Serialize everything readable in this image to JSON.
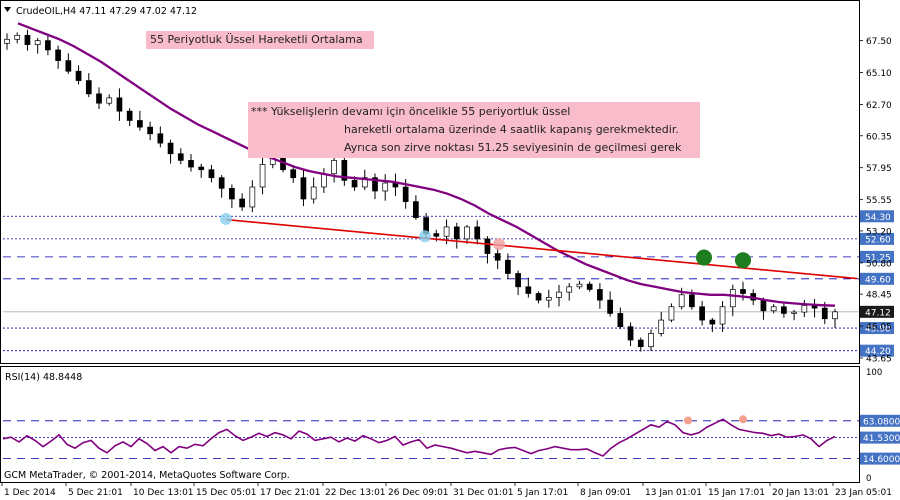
{
  "window": {
    "header": "CrudeOIL,H4 47.11 47.29 47.02 47.12",
    "copyright": "GCM MetaTrader, © 2001-2014, MetaQuotes Software Corp."
  },
  "annotations": {
    "ma_label": "55 Periyotluk Üssel Hareketli Ortalama",
    "note_line1": "*** Yükselişlerin devamı için öncelikle 55 periyortluk üssel",
    "note_line2": "hareketli ortalama üzerinde 4 saatlik kapanış gerekmektedir.",
    "note_line3": "Ayrıca son zirve noktası 51.25 seviyesinin de geçilmesi gerek"
  },
  "colors": {
    "price_line": "#000000",
    "ema": "#800080",
    "trendline": "#e00000",
    "level_line": "#0000aa",
    "rsi_line": "#800080",
    "label_box": "#4472c4",
    "current_box": "#1a1a1a",
    "touch_marker": "#87ceeb",
    "resistance_marker": "#1e7d1e",
    "rsi_peak_marker": "#f4a08a",
    "annotation_bg": "#f8bccb"
  },
  "chart_data": [
    {
      "type": "line",
      "title": "CrudeOIL,H4",
      "ohlc_last": {
        "open": 47.11,
        "high": 47.29,
        "low": 47.02,
        "close": 47.12
      },
      "ylim": [
        43.65,
        68.9
      ],
      "yticks": [
        67.5,
        65.1,
        62.7,
        60.35,
        57.95,
        55.55,
        53.2,
        50.8,
        48.45,
        46.05,
        43.65
      ],
      "xticks": [
        "1 Dec 2014",
        "5 Dec 21:01",
        "10 Dec 13:01",
        "15 Dec 05:01",
        "17 Dec 21:01",
        "22 Dec 13:01",
        "26 Dec 09:01",
        "31 Dec 01:01",
        "5 Jan 17:01",
        "8 Jan 09:01",
        "13 Jan 01:01",
        "15 Jan 17:01",
        "20 Jan 13:01",
        "23 Jan 05:01"
      ],
      "price_levels": [
        {
          "label": "54.30",
          "value": 54.3,
          "style": "dotted"
        },
        {
          "label": "52.60",
          "value": 52.6,
          "style": "dotted"
        },
        {
          "label": "51.25",
          "value": 51.25,
          "style": "dashed"
        },
        {
          "label": "49.60",
          "value": 49.6,
          "style": "dashed"
        },
        {
          "label": "47.12",
          "value": 47.12,
          "style": "current"
        },
        {
          "label": "45.90",
          "value": 45.9,
          "style": "dotted"
        },
        {
          "label": "44.20",
          "value": 44.2,
          "style": "dotted"
        }
      ],
      "series": [
        {
          "key": "close",
          "values": [
            67.6,
            67.9,
            67.2,
            67.5,
            66.8,
            66.0,
            65.2,
            64.5,
            63.5,
            62.8,
            63.2,
            62.2,
            61.5,
            61.0,
            60.5,
            59.8,
            59.0,
            58.5,
            58.0,
            57.8,
            57.2,
            56.4,
            55.6,
            55.0,
            56.5,
            58.2,
            58.8,
            57.8,
            57.2,
            55.6,
            56.5,
            57.5,
            58.5,
            57.0,
            56.5,
            57.2,
            56.2,
            56.8,
            56.5,
            55.4,
            54.2,
            53.0,
            52.8,
            53.5,
            52.6,
            53.5,
            52.6,
            51.5,
            51.0,
            50.0,
            49.0,
            48.5,
            48.0,
            48.2,
            48.6,
            49.0,
            49.2,
            48.8,
            48.0,
            47.0,
            46.0,
            45.0,
            44.5,
            45.5,
            46.5,
            47.5,
            48.4,
            47.5,
            46.5,
            46.2,
            47.5,
            48.8,
            48.5,
            48.0,
            47.2,
            47.5,
            47.0,
            47.1,
            47.6,
            47.4,
            46.6,
            47.12
          ]
        },
        {
          "key": "ema55",
          "values": [
            68.8,
            68.4,
            68.0,
            67.6,
            67.1,
            66.5,
            65.9,
            65.2,
            64.5,
            63.8,
            63.1,
            62.4,
            61.8,
            61.2,
            60.7,
            60.2,
            59.7,
            59.2,
            58.8,
            58.4,
            58.0,
            57.7,
            57.5,
            57.3,
            57.2,
            57.1,
            57.0,
            56.9,
            56.7,
            56.5,
            56.3,
            56.0,
            55.6,
            55.1,
            54.5,
            54.0,
            53.5,
            52.9,
            52.3,
            51.7,
            51.2,
            50.7,
            50.3,
            49.9,
            49.5,
            49.2,
            49.0,
            48.8,
            48.6,
            48.5,
            48.4,
            48.4,
            48.3,
            48.2,
            48.0,
            47.85,
            47.75,
            47.68,
            47.62,
            47.58
          ]
        },
        {
          "key": "trendline",
          "values": [
            54.05,
            49.62
          ]
        }
      ],
      "markers": [
        {
          "name": "touch-1",
          "y": 54.1
        },
        {
          "name": "touch-2",
          "y": 52.8
        },
        {
          "name": "touch-3",
          "y": 52.2
        },
        {
          "name": "resistance-1",
          "y": 51.2
        },
        {
          "name": "resistance-2",
          "y": 51.0
        }
      ]
    },
    {
      "type": "line",
      "title": "RSI(14) 48.8448",
      "ylim": [
        0,
        100
      ],
      "levels": [
        {
          "label": "63.0800",
          "value": 63.08,
          "style": "dashed"
        },
        {
          "label": "41.5300",
          "value": 41.53,
          "style": "dotted"
        },
        {
          "label": "14.6000",
          "value": 14.6,
          "style": "dashed"
        }
      ],
      "series": [
        {
          "key": "rsi",
          "values": [
            40,
            42,
            36,
            44,
            38,
            30,
            37,
            45,
            33,
            28,
            35,
            38,
            28,
            22,
            31,
            36,
            30,
            40,
            34,
            25,
            30,
            22,
            30,
            28,
            33,
            31,
            40,
            48,
            52,
            44,
            38,
            42,
            47,
            43,
            48,
            45,
            40,
            50,
            46,
            38,
            40,
            42,
            36,
            41,
            37,
            44,
            40,
            35,
            38,
            43,
            32,
            36,
            39,
            28,
            32,
            30,
            28,
            25,
            22,
            24,
            22,
            20,
            26,
            28,
            29,
            25,
            21,
            25,
            27,
            30,
            28,
            26,
            26,
            27,
            22,
            18,
            28,
            35,
            40,
            46,
            52,
            58,
            55,
            62,
            58,
            48,
            45,
            48,
            55,
            60,
            65,
            58,
            52,
            50,
            48,
            47,
            44,
            46,
            42,
            43,
            45,
            40,
            30,
            38,
            43
          ]
        }
      ],
      "peak_markers": [
        {
          "name": "rsi-peak-1",
          "y": 63.5
        },
        {
          "name": "rsi-peak-2",
          "y": 65
        }
      ]
    }
  ]
}
